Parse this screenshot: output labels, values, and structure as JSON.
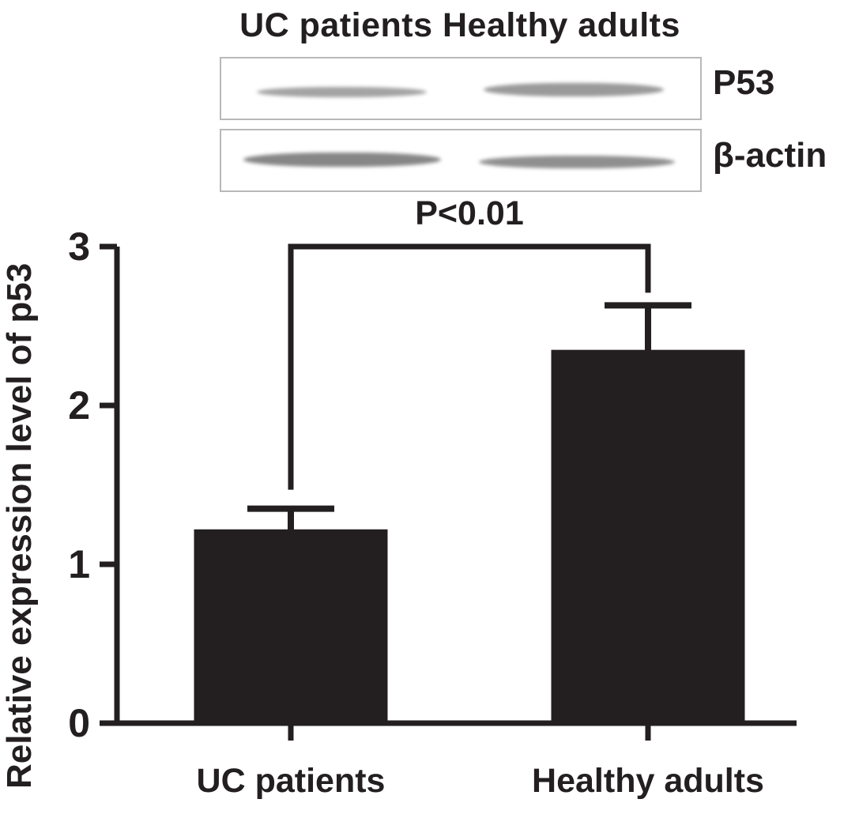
{
  "blot": {
    "header": "UC patients Healthy adults",
    "bands": [
      {
        "label": "P53"
      },
      {
        "label": "β-actin"
      }
    ]
  },
  "chart_data": {
    "type": "bar",
    "title": "",
    "xlabel": "",
    "ylabel": "Relative expression level of p53",
    "categories": [
      "UC patients",
      "Healthy adults"
    ],
    "values": [
      1.22,
      2.35
    ],
    "errors_upper": [
      0.13,
      0.28
    ],
    "ylim": [
      0,
      3
    ],
    "yticks": [
      0,
      1,
      2,
      3
    ],
    "grid": false,
    "legend": false,
    "bar_color": "#231f20",
    "axis_color": "#231f20",
    "annotation": {
      "label": "P<0.01",
      "between": [
        "UC patients",
        "Healthy adults"
      ]
    }
  }
}
